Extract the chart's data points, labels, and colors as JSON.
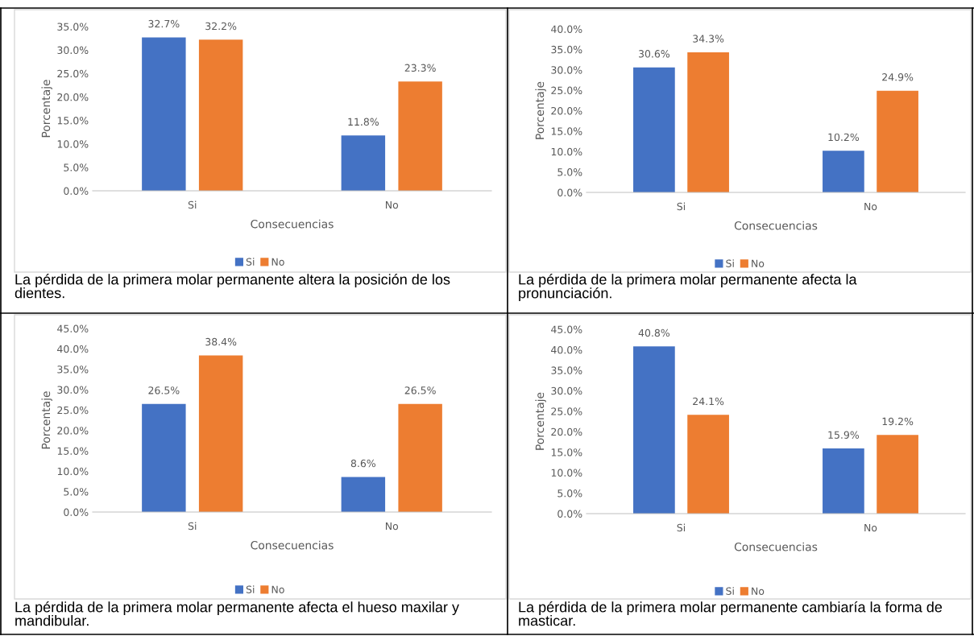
{
  "chart_data": [
    {
      "type": "bar",
      "categories": [
        "Si",
        "No"
      ],
      "xlabel": "Consecuencias",
      "ylabel": "Porcentaje",
      "legend": "bottom",
      "ylim": [
        0,
        35
      ],
      "yticks": [
        {
          "value": 0,
          "label": "0.0%"
        },
        {
          "value": 5,
          "label": "5.0%"
        },
        {
          "value": 10,
          "label": "10.0%"
        },
        {
          "value": 15,
          "label": "15.0%"
        },
        {
          "value": 20,
          "label": "20.0%"
        },
        {
          "value": 25,
          "label": "25.0%"
        },
        {
          "value": 30,
          "label": "30.0%"
        },
        {
          "value": 35,
          "label": "35.0%"
        }
      ],
      "series": [
        {
          "name": "Si",
          "color": "#4472c4",
          "values": [
            32.7,
            11.8
          ],
          "value_labels": [
            "32.7%",
            "11.8%"
          ]
        },
        {
          "name": "No",
          "color": "#ed7d31",
          "values": [
            32.2,
            23.3
          ],
          "value_labels": [
            "32.2%",
            "23.3%"
          ]
        }
      ],
      "annotations": [
        "La pérdida de la primera molar permanente altera la posición de los dientes."
      ]
    },
    {
      "type": "bar",
      "categories": [
        "Si",
        "No"
      ],
      "xlabel": "Consecuencias",
      "ylabel": "Porcentaje",
      "legend": "bottom",
      "ylim": [
        0,
        40
      ],
      "yticks": [
        {
          "value": 0,
          "label": "0.0%"
        },
        {
          "value": 5,
          "label": "5.0%"
        },
        {
          "value": 10,
          "label": "10.0%"
        },
        {
          "value": 15,
          "label": "15.0%"
        },
        {
          "value": 20,
          "label": "20.0%"
        },
        {
          "value": 25,
          "label": "25.0%"
        },
        {
          "value": 30,
          "label": "30.0%"
        },
        {
          "value": 35,
          "label": "35.0%"
        },
        {
          "value": 40,
          "label": "40.0%"
        }
      ],
      "series": [
        {
          "name": "Si",
          "color": "#4472c4",
          "values": [
            30.6,
            10.2
          ],
          "value_labels": [
            "30.6%",
            "10.2%"
          ]
        },
        {
          "name": "No",
          "color": "#ed7d31",
          "values": [
            34.3,
            24.9
          ],
          "value_labels": [
            "34.3%",
            "24.9%"
          ]
        }
      ],
      "annotations": [
        "La pérdida de la primera molar permanente afecta la pronunciación."
      ]
    },
    {
      "type": "bar",
      "categories": [
        "Si",
        "No"
      ],
      "xlabel": "Consecuencias",
      "ylabel": "Porcentaje",
      "legend": "bottom",
      "ylim": [
        0,
        45
      ],
      "yticks": [
        {
          "value": 0,
          "label": "0.0%"
        },
        {
          "value": 5,
          "label": "5.0%"
        },
        {
          "value": 10,
          "label": "10.0%"
        },
        {
          "value": 15,
          "label": "15.0%"
        },
        {
          "value": 20,
          "label": "20.0%"
        },
        {
          "value": 25,
          "label": "25.0%"
        },
        {
          "value": 30,
          "label": "30.0%"
        },
        {
          "value": 35,
          "label": "35.0%"
        },
        {
          "value": 40,
          "label": "40.0%"
        },
        {
          "value": 45,
          "label": "45.0%"
        }
      ],
      "series": [
        {
          "name": "Si",
          "color": "#4472c4",
          "values": [
            26.5,
            8.6
          ],
          "value_labels": [
            "26.5%",
            "8.6%"
          ]
        },
        {
          "name": "No",
          "color": "#ed7d31",
          "values": [
            38.4,
            26.5
          ],
          "value_labels": [
            "38.4%",
            "26.5%"
          ]
        }
      ],
      "annotations": [
        "La pérdida de la primera molar permanente afecta el hueso maxilar y mandibular."
      ]
    },
    {
      "type": "bar",
      "categories": [
        "Si",
        "No"
      ],
      "xlabel": "Consecuencias",
      "ylabel": "Porcentaje",
      "legend": "bottom",
      "ylim": [
        0,
        45
      ],
      "yticks": [
        {
          "value": 0,
          "label": "0.0%"
        },
        {
          "value": 5,
          "label": "5.0%"
        },
        {
          "value": 10,
          "label": "10.0%"
        },
        {
          "value": 15,
          "label": "15.0%"
        },
        {
          "value": 20,
          "label": "20.0%"
        },
        {
          "value": 25,
          "label": "25.0%"
        },
        {
          "value": 30,
          "label": "30.0%"
        },
        {
          "value": 35,
          "label": "35.0%"
        },
        {
          "value": 40,
          "label": "40.0%"
        },
        {
          "value": 45,
          "label": "45.0%"
        }
      ],
      "series": [
        {
          "name": "Si",
          "color": "#4472c4",
          "values": [
            40.8,
            15.9
          ],
          "value_labels": [
            "40.8%",
            "15.9%"
          ]
        },
        {
          "name": "No",
          "color": "#ed7d31",
          "values": [
            24.1,
            19.2
          ],
          "value_labels": [
            "24.1%",
            "19.2%"
          ]
        }
      ],
      "annotations": [
        "La pérdida de la primera molar permanente cambiaría la forma de masticar."
      ]
    }
  ]
}
